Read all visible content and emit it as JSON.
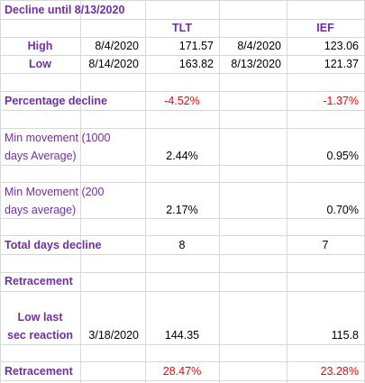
{
  "sheet": {
    "title": "Decline until 8/13/2020",
    "headers": {
      "tlt": "TLT",
      "ief": "IEF"
    },
    "high": {
      "label": "High",
      "tlt_date": "8/4/2020",
      "tlt_value": "171.57",
      "ief_date": "8/4/2020",
      "ief_value": "123.06"
    },
    "low": {
      "label": "Low",
      "tlt_date": "8/14/2020",
      "tlt_value": "163.82",
      "ief_date": "8/13/2020",
      "ief_value": "121.37"
    },
    "percentage_decline": {
      "label": "Percentage decline",
      "tlt": "-4.52%",
      "ief": "-1.37%"
    },
    "min_movement_1000": {
      "label_line1": "Min movement (1000",
      "label_line2": "days Average)",
      "tlt": "2.44%",
      "ief": "0.95%"
    },
    "min_movement_200": {
      "label_line1": "Min Movement (200",
      "label_line2": "days average)",
      "tlt": "2.17%",
      "ief": "0.70%"
    },
    "total_days_decline": {
      "label": "Total days decline",
      "tlt": "8",
      "ief": "7"
    },
    "retracement_header": {
      "label": "Retracement"
    },
    "low_last_sec_reaction": {
      "label_line1": "Low last",
      "label_line2": "sec reaction",
      "date": "3/18/2020",
      "tlt": "144.35",
      "ief": "115.8"
    },
    "retracement_result": {
      "label": "Retracement",
      "tlt": "28.47%",
      "ief": "23.28%"
    }
  },
  "colors": {
    "label_purple": "#7030a0",
    "negative_red": "#ff0000",
    "gridline": "#d8d8d8"
  }
}
